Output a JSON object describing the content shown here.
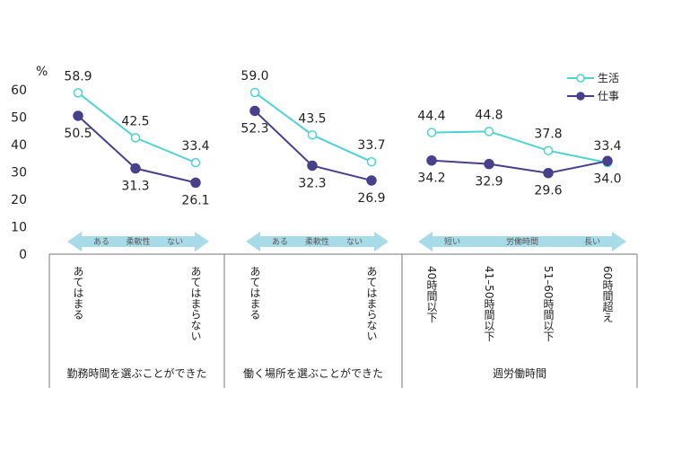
{
  "chart_data": {
    "type": "line",
    "y_unit": "%",
    "ylim": [
      0,
      60
    ],
    "yticks": [
      0,
      10,
      20,
      30,
      40,
      50,
      60
    ],
    "legend": {
      "position": "top-right",
      "entries": [
        "生活",
        "仕事"
      ]
    },
    "colors": {
      "生活": "#4fd3d0",
      "仕事": "#47408a",
      "arrow": "#a8dbe8"
    },
    "groups": [
      {
        "title": "勤務時間を選ぶことができた",
        "arrow": {
          "left": "ある",
          "center": "柔軟性",
          "right": "ない"
        },
        "categories": [
          "あてはまる",
          "",
          "あてはまらない"
        ],
        "series": [
          {
            "name": "生活",
            "values": [
              58.9,
              42.5,
              33.4
            ]
          },
          {
            "name": "仕事",
            "values": [
              50.5,
              31.3,
              26.1
            ]
          }
        ]
      },
      {
        "title": "働く場所を選ぶことができた",
        "arrow": {
          "left": "ある",
          "center": "柔軟性",
          "right": "ない"
        },
        "categories": [
          "あてはまる",
          "",
          "あてはまらない"
        ],
        "series": [
          {
            "name": "生活",
            "values": [
              59.0,
              43.5,
              33.7
            ]
          },
          {
            "name": "仕事",
            "values": [
              52.3,
              32.3,
              26.9
            ]
          }
        ]
      },
      {
        "title": "週労働時間",
        "arrow": {
          "left": "短い",
          "center": "労働時間",
          "right": "長い"
        },
        "categories": [
          "40時間以下",
          "41–50時間以下",
          "51–60時間以下",
          "60時間超え"
        ],
        "series": [
          {
            "name": "生活",
            "values": [
              44.4,
              44.8,
              37.8,
              33.4
            ]
          },
          {
            "name": "仕事",
            "values": [
              34.2,
              32.9,
              29.6,
              34.0
            ]
          }
        ]
      }
    ]
  }
}
